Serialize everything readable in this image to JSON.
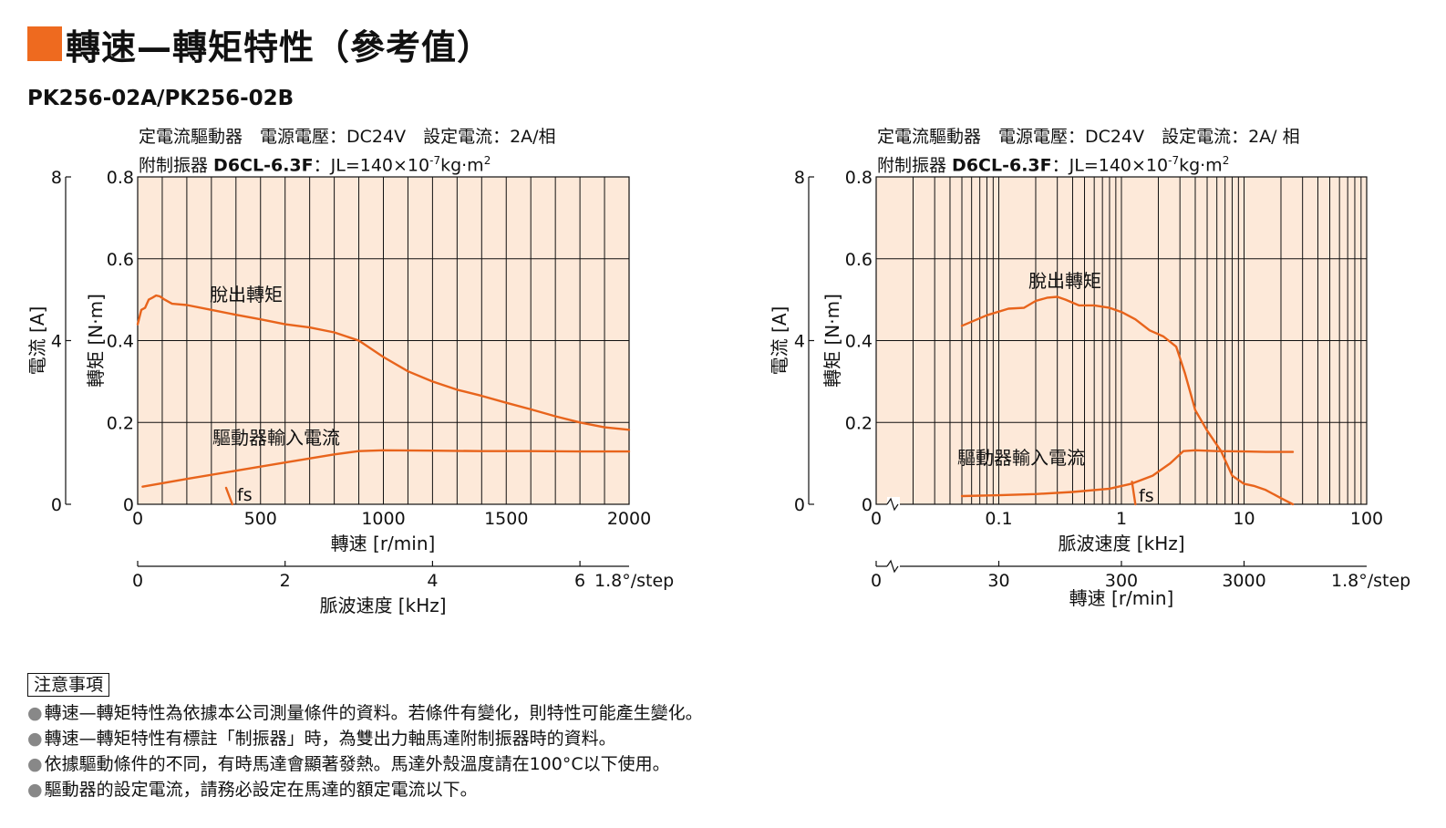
{
  "header": {
    "title": "轉速—轉矩特性（參考值）",
    "model": "PK256-02A/PK256-02B",
    "accent_color": "#ee6a1f"
  },
  "conditions": {
    "line1": "定電流驅動器　電源電壓：DC24V　設定電流：2A/相",
    "line1_right": "定電流驅動器　電源電壓：DC24V　設定電流：2A/ 相",
    "line2_prefix": "附制振器 ",
    "line2_damper": "D6CL-6.3F",
    "line2_inertia": "：JL=140×10",
    "line2_exp": "-7",
    "line2_unit": "kg·m",
    "line2_unit_exp": "2"
  },
  "chart_data": [
    {
      "type": "line",
      "x_scale": "linear",
      "xlabel": "轉速 [r/min]",
      "xlim": [
        0,
        2000
      ],
      "xticks": [
        0,
        500,
        1000,
        1500,
        2000
      ],
      "ylabel": "轉矩 [N·m]",
      "ylim": [
        0,
        0.8
      ],
      "yticks": [
        "0",
        "0.2",
        "0.4",
        "0.6",
        "0.8"
      ],
      "y2label": "電流 [A]",
      "y2lim": [
        0,
        8
      ],
      "y2ticks": [
        "0",
        "4",
        "8"
      ],
      "x2label": "脈波速度 [kHz]",
      "x2lim": [
        0,
        6.67
      ],
      "x2ticks": [
        "0",
        "2",
        "4",
        "6"
      ],
      "x2unit": "1.8°/step",
      "grid": true,
      "background": "#fde9d9",
      "series": [
        {
          "name": "脫出轉矩",
          "color": "#e8641c",
          "axis": "y",
          "x": [
            0,
            15,
            30,
            45,
            60,
            75,
            90,
            110,
            140,
            200,
            300,
            400,
            500,
            600,
            700,
            800,
            900,
            1000,
            1100,
            1200,
            1300,
            1400,
            1500,
            1600,
            1700,
            1800,
            1900,
            2000
          ],
          "y": [
            0.44,
            0.475,
            0.48,
            0.5,
            0.505,
            0.51,
            0.508,
            0.5,
            0.49,
            0.487,
            0.475,
            0.463,
            0.452,
            0.44,
            0.432,
            0.42,
            0.4,
            0.36,
            0.325,
            0.3,
            0.28,
            0.265,
            0.248,
            0.232,
            0.215,
            0.2,
            0.188,
            0.182
          ]
        },
        {
          "name": "驅動器輸入電流",
          "color": "#e8641c",
          "axis": "y2",
          "x": [
            20,
            200,
            400,
            600,
            800,
            900,
            1000,
            1200,
            1400,
            1600,
            1800,
            2000
          ],
          "y": [
            0.43,
            0.62,
            0.82,
            1.02,
            1.22,
            1.3,
            1.32,
            1.31,
            1.3,
            1.3,
            1.29,
            1.29
          ]
        },
        {
          "name": "fs",
          "color": "#e8641c",
          "axis": "y",
          "x": [
            360,
            385
          ],
          "y": [
            0.04,
            0.0
          ]
        }
      ],
      "annotations": [
        "脫出轉矩",
        "驅動器輸入電流",
        "fs"
      ]
    },
    {
      "type": "line",
      "x_scale": "log",
      "xlabel": "脈波速度 [kHz]",
      "xlim": [
        0.01,
        100
      ],
      "xticks": [
        "0.1",
        "1",
        "10",
        "100"
      ],
      "x_axis_break": true,
      "x_origin_label": "0",
      "ylabel": "轉矩 [N·m]",
      "ylim": [
        0,
        0.8
      ],
      "yticks": [
        "0",
        "0.2",
        "0.4",
        "0.6",
        "0.8"
      ],
      "y2label": "電流 [A]",
      "y2lim": [
        0,
        8
      ],
      "y2ticks": [
        "0",
        "4",
        "8"
      ],
      "x2label": "轉速 [r/min]",
      "x2ticks": [
        "30",
        "300",
        "3000"
      ],
      "x2_origin_label": "0",
      "x2unit": "1.8°/step",
      "grid": true,
      "background": "#fde9d9",
      "series": [
        {
          "name": "脫出轉矩",
          "color": "#e8641c",
          "axis": "y",
          "x": [
            0.05,
            0.08,
            0.12,
            0.16,
            0.2,
            0.25,
            0.3,
            0.35,
            0.45,
            0.6,
            0.8,
            1.0,
            1.3,
            1.7,
            2.2,
            2.8,
            3.3,
            4.0,
            5.0,
            6.5,
            8.0,
            10,
            12,
            15,
            20,
            25
          ],
          "y": [
            0.436,
            0.462,
            0.478,
            0.48,
            0.497,
            0.505,
            0.507,
            0.5,
            0.486,
            0.486,
            0.48,
            0.47,
            0.452,
            0.425,
            0.41,
            0.385,
            0.32,
            0.23,
            0.18,
            0.13,
            0.07,
            0.05,
            0.045,
            0.035,
            0.015,
            0.0
          ]
        },
        {
          "name": "驅動器輸入電流",
          "color": "#e8641c",
          "axis": "y2",
          "x": [
            0.05,
            0.1,
            0.2,
            0.4,
            0.8,
            1.2,
            1.8,
            2.5,
            3.2,
            4.0,
            6.0,
            10,
            15,
            20,
            25
          ],
          "y": [
            0.2,
            0.22,
            0.25,
            0.3,
            0.38,
            0.5,
            0.7,
            1.0,
            1.3,
            1.32,
            1.3,
            1.29,
            1.28,
            1.28,
            1.28
          ]
        },
        {
          "name": "fs",
          "color": "#e8641c",
          "axis": "y",
          "x": [
            1.22,
            1.3
          ],
          "y": [
            0.055,
            0.0
          ]
        }
      ],
      "annotations": [
        "脫出轉矩",
        "驅動器輸入電流",
        "fs"
      ]
    }
  ],
  "notes": {
    "heading": "注意事項",
    "bullet": "●",
    "items": [
      "轉速—轉矩特性為依據本公司測量條件的資料。若條件有變化，則特性可能產生變化。",
      "轉速—轉矩特性有標註「制振器」時，為雙出力軸馬達附制振器時的資料。",
      "依據驅動條件的不同，有時馬達會顯著發熱。馬達外殼溫度請在100°C以下使用。",
      "驅動器的設定電流，請務必設定在馬達的額定電流以下。"
    ]
  }
}
